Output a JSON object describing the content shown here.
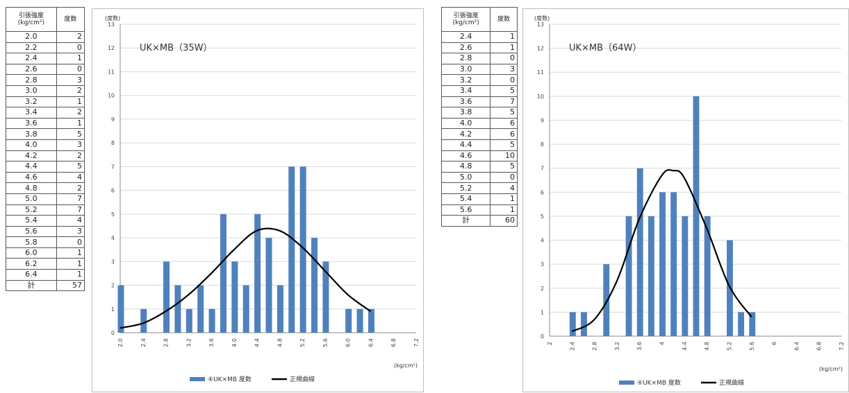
{
  "tables": [
    {
      "header_strength": "引張強度\n(kg/cm²)",
      "header_count": "度数",
      "rows": [
        [
          "2.0",
          "2"
        ],
        [
          "2.2",
          "0"
        ],
        [
          "2.4",
          "1"
        ],
        [
          "2.6",
          "0"
        ],
        [
          "2.8",
          "3"
        ],
        [
          "3.0",
          "2"
        ],
        [
          "3.2",
          "1"
        ],
        [
          "3.4",
          "2"
        ],
        [
          "3.6",
          "1"
        ],
        [
          "3.8",
          "5"
        ],
        [
          "4.0",
          "3"
        ],
        [
          "4.2",
          "2"
        ],
        [
          "4.4",
          "5"
        ],
        [
          "4.6",
          "4"
        ],
        [
          "4.8",
          "2"
        ],
        [
          "5.0",
          "7"
        ],
        [
          "5.2",
          "7"
        ],
        [
          "5.4",
          "4"
        ],
        [
          "5.6",
          "3"
        ],
        [
          "5.8",
          "0"
        ],
        [
          "6.0",
          "1"
        ],
        [
          "6.2",
          "1"
        ],
        [
          "6.4",
          "1"
        ]
      ],
      "total_label": "計",
      "total_value": "57"
    },
    {
      "header_strength": "引張強度\n(kg/cm²)",
      "header_count": "度数",
      "rows": [
        [
          "2.4",
          "1"
        ],
        [
          "2.6",
          "1"
        ],
        [
          "2.8",
          "0"
        ],
        [
          "3.0",
          "3"
        ],
        [
          "3.2",
          "0"
        ],
        [
          "3.4",
          "5"
        ],
        [
          "3.6",
          "7"
        ],
        [
          "3.8",
          "5"
        ],
        [
          "4.0",
          "6"
        ],
        [
          "4.2",
          "6"
        ],
        [
          "4.4",
          "5"
        ],
        [
          "4.6",
          "10"
        ],
        [
          "4.8",
          "5"
        ],
        [
          "5.0",
          "0"
        ],
        [
          "5.2",
          "4"
        ],
        [
          "5.4",
          "1"
        ],
        [
          "5.6",
          "1"
        ]
      ],
      "total_label": "計",
      "total_value": "60"
    }
  ],
  "chart_data": [
    {
      "type": "bar",
      "title": "UK×MB（35W）",
      "ylabel": "(度数)",
      "xlabel": "(kg/cm²)",
      "ylim": [
        0,
        13
      ],
      "xlim": [
        2.0,
        7.2
      ],
      "xticks": [
        "2.0",
        "2.4",
        "2.8",
        "3.2",
        "3.6",
        "4.0",
        "4.4",
        "4.8",
        "5.2",
        "5.6",
        "6.0",
        "6.4",
        "6.8",
        "7.2"
      ],
      "x": [
        2.0,
        2.2,
        2.4,
        2.6,
        2.8,
        3.0,
        3.2,
        3.4,
        3.6,
        3.8,
        4.0,
        4.2,
        4.4,
        4.6,
        4.8,
        5.0,
        5.2,
        5.4,
        5.6,
        5.8,
        6.0,
        6.2,
        6.4
      ],
      "series": [
        {
          "name": "④UK×MB 度数",
          "type": "bar",
          "color": "#4f81bd",
          "values": [
            2,
            0,
            1,
            0,
            3,
            2,
            1,
            2,
            1,
            5,
            3,
            2,
            5,
            4,
            2,
            7,
            7,
            4,
            3,
            0,
            1,
            1,
            1
          ]
        },
        {
          "name": "正規曲線",
          "type": "line",
          "color": "#000000",
          "x": [
            2.0,
            2.4,
            2.8,
            3.2,
            3.6,
            4.0,
            4.4,
            4.8,
            5.2,
            5.6,
            6.0,
            6.4
          ],
          "values": [
            0.2,
            0.4,
            0.9,
            1.6,
            2.5,
            3.5,
            4.3,
            4.3,
            3.6,
            2.6,
            1.6,
            0.9
          ]
        }
      ],
      "legend": "bottom",
      "grid": true
    },
    {
      "type": "bar",
      "title": "UK×MB（64W）",
      "ylabel": "(度数)",
      "xlabel": "(kg/cm²)",
      "ylim": [
        0,
        13
      ],
      "xlim": [
        2.0,
        7.2
      ],
      "xticks": [
        "2",
        "2.4",
        "2.8",
        "3.2",
        "3.6",
        "4",
        "4.4",
        "4.8",
        "5.2",
        "5.6",
        "6",
        "6.4",
        "6.8",
        "7.2"
      ],
      "x": [
        2.4,
        2.6,
        2.8,
        3.0,
        3.2,
        3.4,
        3.6,
        3.8,
        4.0,
        4.2,
        4.4,
        4.6,
        4.8,
        5.0,
        5.2,
        5.4,
        5.6
      ],
      "series": [
        {
          "name": "④UK×MB 度数",
          "type": "bar",
          "color": "#4f81bd",
          "values": [
            1,
            1,
            0,
            3,
            0,
            5,
            7,
            5,
            6,
            6,
            5,
            10,
            5,
            0,
            4,
            1,
            1
          ]
        },
        {
          "name": "正規曲線",
          "type": "line",
          "color": "#000000",
          "x": [
            2.4,
            2.8,
            3.2,
            3.6,
            4.0,
            4.2,
            4.4,
            4.8,
            5.2,
            5.6
          ],
          "values": [
            0.2,
            0.7,
            2.3,
            4.9,
            6.7,
            6.9,
            6.6,
            4.5,
            2.1,
            0.8
          ]
        }
      ],
      "legend": "bottom",
      "grid": true
    }
  ]
}
